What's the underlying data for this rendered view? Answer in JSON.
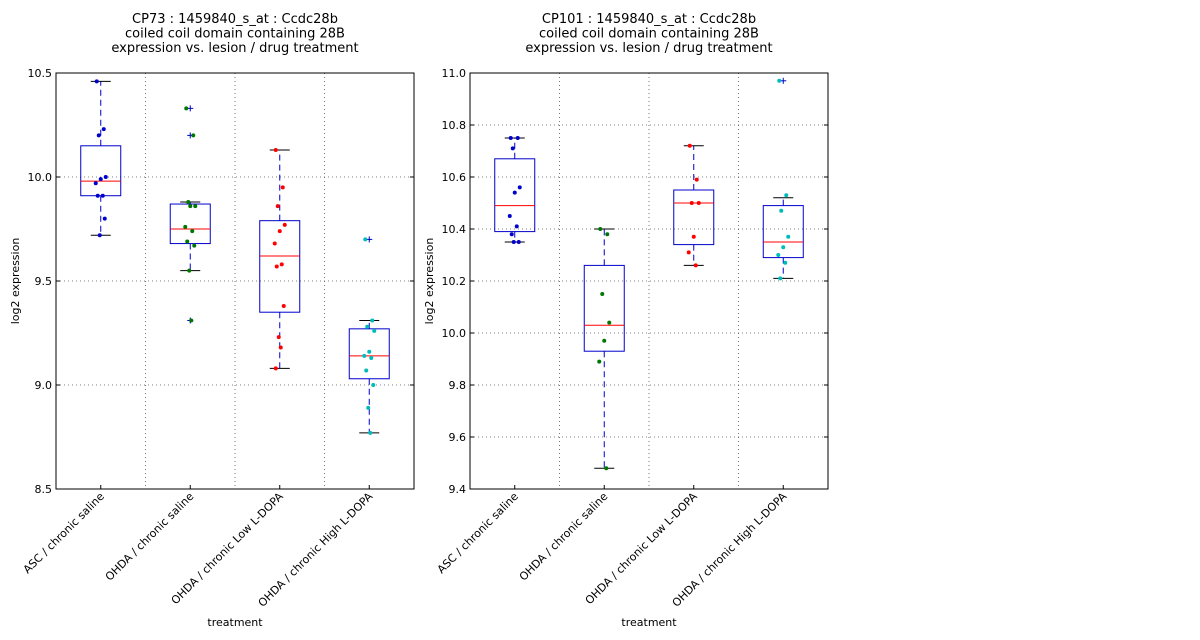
{
  "chart_data": [
    {
      "type": "box",
      "title_lines": [
        "CP73 : 1459840_s_at : Ccdc28b",
        "coiled coil domain containing 28B",
        "expression vs. lesion / drug treatment"
      ],
      "xlabel": "treatment",
      "ylabel": "log2 expression",
      "ylim": [
        8.5,
        10.5
      ],
      "yticks": [
        8.5,
        9.0,
        9.5,
        10.0,
        10.5
      ],
      "ytick_labels": [
        "8.5",
        "9.0",
        "9.5",
        "10.0",
        "10.5"
      ],
      "grid": true,
      "categories": [
        "ASC / chronic saline",
        "OHDA / chronic saline",
        "OHDA / chronic Low L-DOPA",
        "OHDA / chronic High L-DOPA"
      ],
      "boxes": [
        {
          "q1": 9.91,
          "median": 9.98,
          "q3": 10.15,
          "whisker_low": 9.72,
          "whisker_high": 10.46,
          "outliers": []
        },
        {
          "q1": 9.68,
          "median": 9.75,
          "q3": 9.87,
          "whisker_low": 9.55,
          "whisker_high": 9.88,
          "outliers": [
            10.33,
            10.2,
            9.31
          ]
        },
        {
          "q1": 9.35,
          "median": 9.62,
          "q3": 9.79,
          "whisker_low": 9.08,
          "whisker_high": 10.13,
          "outliers": []
        },
        {
          "q1": 9.03,
          "median": 9.14,
          "q3": 9.27,
          "whisker_low": 8.77,
          "whisker_high": 9.31,
          "outliers": [
            9.7
          ]
        }
      ],
      "points": [
        {
          "color": "#0000cc",
          "values": [
            10.46,
            10.23,
            10.2,
            10.0,
            9.99,
            9.97,
            9.91,
            9.91,
            9.8,
            9.72
          ]
        },
        {
          "color": "#007700",
          "values": [
            10.33,
            10.2,
            9.88,
            9.86,
            9.86,
            9.76,
            9.74,
            9.69,
            9.67,
            9.55,
            9.31
          ]
        },
        {
          "color": "#ff0000",
          "values": [
            10.13,
            9.95,
            9.86,
            9.77,
            9.74,
            9.68,
            9.58,
            9.57,
            9.38,
            9.23,
            9.18,
            9.08
          ]
        },
        {
          "color": "#00bbbb",
          "values": [
            9.7,
            9.31,
            9.28,
            9.26,
            9.16,
            9.14,
            9.13,
            9.07,
            9.0,
            8.89,
            8.77
          ]
        }
      ]
    },
    {
      "type": "box",
      "title_lines": [
        "CP101 : 1459840_s_at : Ccdc28b",
        "coiled coil domain containing 28B",
        "expression vs. lesion / drug treatment"
      ],
      "xlabel": "treatment",
      "ylabel": "log2 expression",
      "ylim": [
        9.4,
        11.0
      ],
      "yticks": [
        9.4,
        9.6,
        9.8,
        10.0,
        10.2,
        10.4,
        10.6,
        10.8,
        11.0
      ],
      "ytick_labels": [
        "9.4",
        "9.6",
        "9.8",
        "10.0",
        "10.2",
        "10.4",
        "10.6",
        "10.8",
        "11.0"
      ],
      "grid": true,
      "categories": [
        "ASC / chronic saline",
        "OHDA / chronic saline",
        "OHDA / chronic Low L-DOPA",
        "OHDA / chronic High L-DOPA"
      ],
      "boxes": [
        {
          "q1": 10.39,
          "median": 10.49,
          "q3": 10.67,
          "whisker_low": 10.35,
          "whisker_high": 10.75,
          "outliers": []
        },
        {
          "q1": 9.93,
          "median": 10.03,
          "q3": 10.26,
          "whisker_low": 9.48,
          "whisker_high": 10.4,
          "outliers": []
        },
        {
          "q1": 10.34,
          "median": 10.5,
          "q3": 10.55,
          "whisker_low": 10.26,
          "whisker_high": 10.72,
          "outliers": []
        },
        {
          "q1": 10.29,
          "median": 10.35,
          "q3": 10.49,
          "whisker_low": 10.21,
          "whisker_high": 10.52,
          "outliers": [
            10.97
          ]
        }
      ],
      "points": [
        {
          "color": "#0000cc",
          "values": [
            10.75,
            10.75,
            10.71,
            10.56,
            10.54,
            10.45,
            10.41,
            10.38,
            10.35,
            10.35
          ]
        },
        {
          "color": "#007700",
          "values": [
            10.4,
            10.38,
            10.15,
            10.04,
            9.97,
            9.89,
            9.48
          ]
        },
        {
          "color": "#ff0000",
          "values": [
            10.72,
            10.59,
            10.5,
            10.5,
            10.37,
            10.31,
            10.26
          ]
        },
        {
          "color": "#00bbbb",
          "values": [
            10.97,
            10.53,
            10.47,
            10.37,
            10.33,
            10.3,
            10.27,
            10.21
          ]
        }
      ]
    }
  ],
  "colors": {
    "box": "#0000cc",
    "median": "#ff0000",
    "whisker": "#0000cc",
    "cap": "#000000",
    "grid": "#555555"
  }
}
